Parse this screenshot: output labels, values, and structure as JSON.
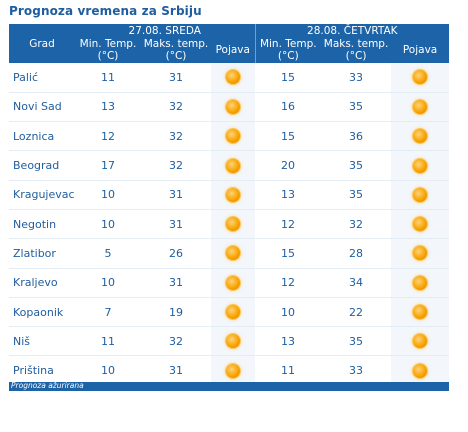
{
  "title": "Prognoza vremena za Srbiju",
  "day1": {
    "label": "27.08. SREDA"
  },
  "day2": {
    "label": "28.08. ČETVRTAK"
  },
  "columns": {
    "city": "Grad",
    "min_line1": "Min. Temp.",
    "min_line2": "(°C)",
    "max_line1": "Maks. temp.",
    "max_line2": "(°C)",
    "phenom": "Pojava"
  },
  "icons": {
    "weather": "sun-icon"
  },
  "rows": [
    {
      "city": "Palić",
      "d1_min": "11",
      "d1_max": "31",
      "d2_min": "15",
      "d2_max": "33"
    },
    {
      "city": "Novi Sad",
      "d1_min": "13",
      "d1_max": "32",
      "d2_min": "16",
      "d2_max": "35"
    },
    {
      "city": "Loznica",
      "d1_min": "12",
      "d1_max": "32",
      "d2_min": "15",
      "d2_max": "36"
    },
    {
      "city": "Beograd",
      "d1_min": "17",
      "d1_max": "32",
      "d2_min": "20",
      "d2_max": "35"
    },
    {
      "city": "Kragujevac",
      "d1_min": "10",
      "d1_max": "31",
      "d2_min": "13",
      "d2_max": "35"
    },
    {
      "city": "Negotin",
      "d1_min": "10",
      "d1_max": "31",
      "d2_min": "12",
      "d2_max": "32"
    },
    {
      "city": "Zlatibor",
      "d1_min": "5",
      "d1_max": "26",
      "d2_min": "15",
      "d2_max": "28"
    },
    {
      "city": "Kraljevo",
      "d1_min": "10",
      "d1_max": "31",
      "d2_min": "12",
      "d2_max": "34"
    },
    {
      "city": "Kopaonik",
      "d1_min": "7",
      "d1_max": "19",
      "d2_min": "10",
      "d2_max": "22"
    },
    {
      "city": "Niš",
      "d1_min": "11",
      "d1_max": "32",
      "d2_min": "13",
      "d2_max": "35"
    },
    {
      "city": "Priština",
      "d1_min": "10",
      "d1_max": "31",
      "d2_min": "11",
      "d2_max": "33"
    }
  ],
  "footer": {
    "text": "Prognoza ažurirana"
  },
  "colors": {
    "header_bg": "#1d63a8",
    "text": "#1f5d9e",
    "sun": "#f7a400"
  }
}
